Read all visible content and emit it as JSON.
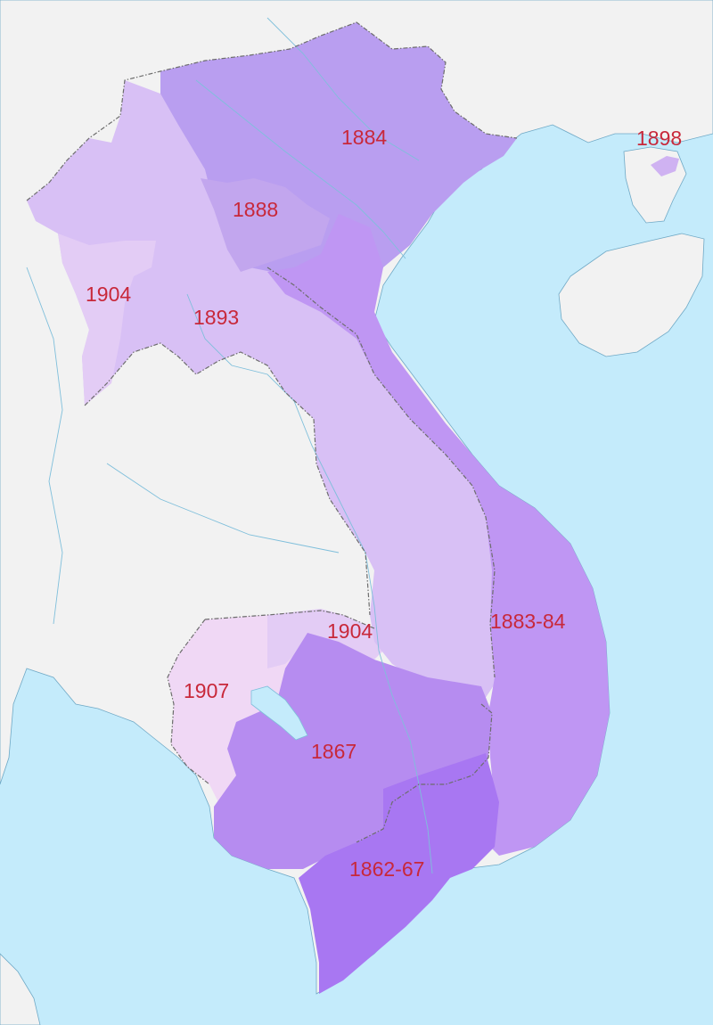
{
  "colors": {
    "sea": "#c4ebfb",
    "land": "#f2f2f2",
    "label": "#c8283a",
    "y1862_67": "#a877f2",
    "y1867": "#b68cf0",
    "y1883_84": "#bf96f3",
    "y1884": "#b99ef0",
    "y1888": "#c2a6ee",
    "y1893": "#d8c0f5",
    "y1898": "#cfb2f2",
    "y1904": "#e3ccf5",
    "y1907": "#f0d8f5"
  },
  "labels": {
    "l1884": "1884",
    "l1898": "1898",
    "l1888": "1888",
    "l1904_north": "1904",
    "l1893": "1893",
    "l1904_south": "1904",
    "l1883_84": "1883-84",
    "l1907": "1907",
    "l1867": "1867",
    "l1862_67": "1862-67"
  }
}
